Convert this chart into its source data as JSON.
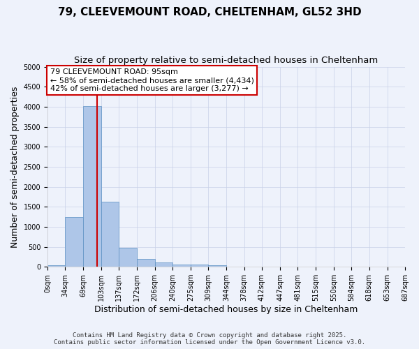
{
  "title1": "79, CLEEVEMOUNT ROAD, CHELTENHAM, GL52 3HD",
  "title2": "Size of property relative to semi-detached houses in Cheltenham",
  "xlabel": "Distribution of semi-detached houses by size in Cheltenham",
  "ylabel": "Number of semi-detached properties",
  "bin_edges": [
    0,
    34,
    69,
    103,
    137,
    172,
    206,
    240,
    275,
    309,
    344,
    378,
    412,
    447,
    481,
    515,
    550,
    584,
    618,
    653,
    687
  ],
  "bar_heights": [
    40,
    1240,
    4020,
    1620,
    480,
    190,
    105,
    60,
    50,
    45,
    0,
    0,
    0,
    0,
    0,
    0,
    0,
    0,
    0,
    0
  ],
  "bar_color": "#aec6e8",
  "bar_edge_color": "#5a8fc2",
  "property_size": 95,
  "property_line_color": "#cc0000",
  "annotation_line1": "79 CLEEVEMOUNT ROAD: 95sqm",
  "annotation_line2": "← 58% of semi-detached houses are smaller (4,434)",
  "annotation_line3": "42% of semi-detached houses are larger (3,277) →",
  "annotation_box_color": "#ffffff",
  "annotation_box_edge_color": "#cc0000",
  "ylim": [
    0,
    5000
  ],
  "yticks": [
    0,
    500,
    1000,
    1500,
    2000,
    2500,
    3000,
    3500,
    4000,
    4500,
    5000
  ],
  "bg_color": "#eef2fb",
  "footer1": "Contains HM Land Registry data © Crown copyright and database right 2025.",
  "footer2": "Contains public sector information licensed under the Open Government Licence v3.0.",
  "title1_fontsize": 11,
  "title2_fontsize": 9.5,
  "annotation_fontsize": 8,
  "axis_label_fontsize": 9,
  "tick_fontsize": 7,
  "footer_fontsize": 6.5
}
